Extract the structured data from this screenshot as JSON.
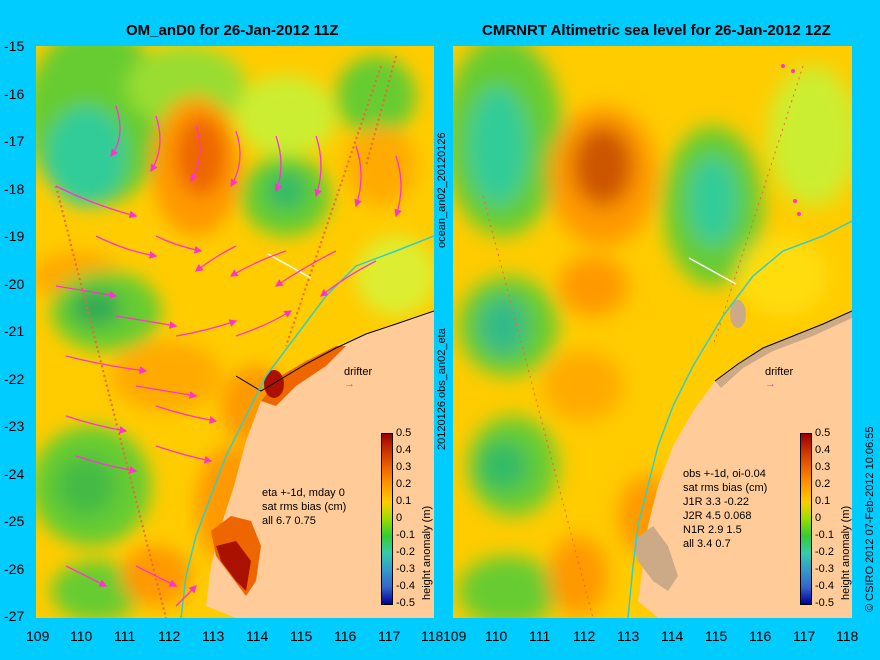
{
  "left_panel": {
    "title": "OM_anD0 for 26-Jan-2012 11Z",
    "side_label": "ocean_an02_20120126",
    "stats": [
      "eta +-1d, mday 0",
      "sat rms bias (cm)",
      "all 6.7 0.75"
    ],
    "drifter_label": "drifter"
  },
  "right_panel": {
    "title": "CMRNRT Altimetric sea level  for 26-Jan-2012 12Z",
    "side_label": "20120126.obs_an02_eta",
    "stats": [
      "obs +-1d, oi-0.04",
      "sat rms bias (cm)",
      "J1R   3.3 -0.22",
      "J2R   4.5 0.068",
      "N1R   2.9 1.5",
      "all 3.4 0.7"
    ],
    "drifter_label": "drifter"
  },
  "y_axis_ticks": [
    "-15",
    "-16",
    "-17",
    "-18",
    "-19",
    "-20",
    "-21",
    "-22",
    "-23",
    "-24",
    "-25",
    "-26",
    "-27"
  ],
  "x_axis_ticks_left": [
    "109",
    "110",
    "111",
    "112",
    "113",
    "114",
    "115",
    "116",
    "117",
    "118"
  ],
  "x_axis_ticks_right": [
    "109",
    "110",
    "111",
    "112",
    "113",
    "114",
    "115",
    "116",
    "117",
    "118"
  ],
  "colorbar": {
    "label": "height anomaly (m)",
    "ticks": [
      "0.5",
      "0.4",
      "0.3",
      "0.2",
      "0.1",
      "0",
      "-0.1",
      "-0.2",
      "-0.3",
      "-0.4",
      "-0.5"
    ]
  },
  "copyright": "© CSIRO 2012  07-Feb-2012 10:06:55",
  "colors": {
    "background": "#00ccff",
    "land": "#ffcc99",
    "sea_base": "#ffcc00",
    "current_arrows": "#ff33cc",
    "track_line": "#33cccc"
  }
}
